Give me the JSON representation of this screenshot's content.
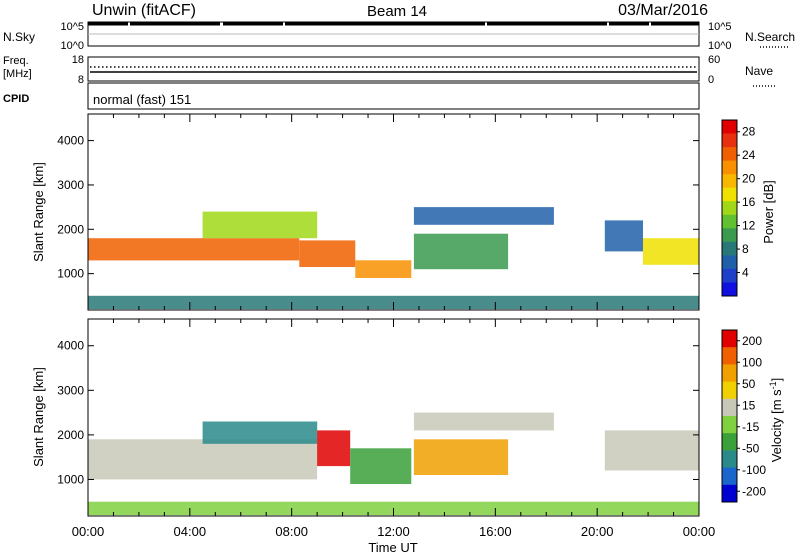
{
  "header": {
    "station": "Unwin (fitACF)",
    "beam": "Beam 14",
    "date": "03/Mar/2016"
  },
  "sky_panel": {
    "left_label": "N.Sky",
    "right_label": "N.Search",
    "left_ticks": [
      "10^5",
      "10^0"
    ],
    "right_ticks": [
      "10^5",
      "10^0"
    ]
  },
  "freq_panel": {
    "left_label_lines": [
      "Freq.",
      "[MHz]"
    ],
    "right_label": "Nave",
    "left_ticks": [
      "18",
      "8"
    ],
    "right_ticks": [
      "60",
      "0"
    ]
  },
  "cpid": {
    "label": "CPID",
    "value": "normal (fast) 151"
  },
  "chart_data": [
    {
      "type": "heatmap",
      "name": "power",
      "ylabel": "Slant Range [km]",
      "xlabel": "Time UT",
      "x_tick_labels": [
        "00:00",
        "04:00",
        "08:00",
        "12:00",
        "16:00",
        "20:00",
        "00:00"
      ],
      "xlim_hours": [
        0,
        24
      ],
      "ylim_km": [
        180,
        4600
      ],
      "y_ticks": [
        1000,
        2000,
        3000,
        4000
      ],
      "colorbar": {
        "label": "Power [dB]",
        "ticks": [
          4,
          8,
          12,
          16,
          20,
          24,
          28
        ],
        "range": [
          0,
          30
        ],
        "colors": [
          "#1010e0",
          "#1e40c8",
          "#2060a8",
          "#287878",
          "#3a9a50",
          "#60c030",
          "#a0d818",
          "#f0e000",
          "#f8b800",
          "#f89000",
          "#f06000",
          "#e83010",
          "#e00000"
        ]
      },
      "features": [
        {
          "t": [
            0,
            8.3
          ],
          "range_km": [
            1300,
            1800
          ],
          "value": 25
        },
        {
          "t": [
            8.3,
            10.5
          ],
          "range_km": [
            1150,
            1750
          ],
          "value": 24
        },
        {
          "t": [
            10.5,
            12.7
          ],
          "range_km": [
            900,
            1300
          ],
          "value": 22
        },
        {
          "t": [
            4.5,
            9.0
          ],
          "range_km": [
            1800,
            2400
          ],
          "value": 15
        },
        {
          "t": [
            12.8,
            16.5
          ],
          "range_km": [
            1100,
            1900
          ],
          "value": 10
        },
        {
          "t": [
            12.8,
            18.3
          ],
          "range_km": [
            2100,
            2500
          ],
          "value": 5
        },
        {
          "t": [
            20.3,
            21.8
          ],
          "range_km": [
            1500,
            2200
          ],
          "value": 6
        },
        {
          "t": [
            21.8,
            24.0
          ],
          "range_km": [
            1200,
            1800
          ],
          "value": 18
        },
        {
          "t": [
            0,
            24
          ],
          "range_km": [
            200,
            500
          ],
          "value": 8
        }
      ]
    },
    {
      "type": "heatmap",
      "name": "velocity",
      "ylabel": "Slant Range [km]",
      "xlabel": "Time UT",
      "x_tick_labels": [
        "00:00",
        "04:00",
        "08:00",
        "12:00",
        "16:00",
        "20:00",
        "00:00"
      ],
      "xlim_hours": [
        0,
        24
      ],
      "ylim_km": [
        180,
        4600
      ],
      "y_ticks": [
        1000,
        2000,
        3000,
        4000
      ],
      "colorbar": {
        "label": "Velocity [m s^-1]",
        "ticks": [
          200,
          100,
          50,
          15,
          -15,
          -50,
          -100,
          -200
        ],
        "range": [
          -250,
          250
        ],
        "colors": [
          "#0000d0",
          "#1a66cc",
          "#2a8a8a",
          "#3aa03a",
          "#80d040",
          "#c8c8b8",
          "#f0d000",
          "#f0a000",
          "#f06000",
          "#e00000"
        ]
      },
      "features": [
        {
          "t": [
            0,
            9.0
          ],
          "range_km": [
            1000,
            1900
          ],
          "value": 0
        },
        {
          "t": [
            4.5,
            9.0
          ],
          "range_km": [
            1800,
            2300
          ],
          "value": -130
        },
        {
          "t": [
            9.0,
            10.3
          ],
          "range_km": [
            1300,
            2100
          ],
          "value": 200
        },
        {
          "t": [
            10.3,
            12.7
          ],
          "range_km": [
            900,
            1700
          ],
          "value": -60
        },
        {
          "t": [
            12.8,
            16.5
          ],
          "range_km": [
            1100,
            1900
          ],
          "value": 120
        },
        {
          "t": [
            12.8,
            18.3
          ],
          "range_km": [
            2100,
            2500
          ],
          "value": 40
        },
        {
          "t": [
            20.3,
            24.0
          ],
          "range_km": [
            1200,
            2100
          ],
          "value": 0
        },
        {
          "t": [
            0,
            24
          ],
          "range_km": [
            200,
            500
          ],
          "value": -20
        }
      ]
    }
  ]
}
